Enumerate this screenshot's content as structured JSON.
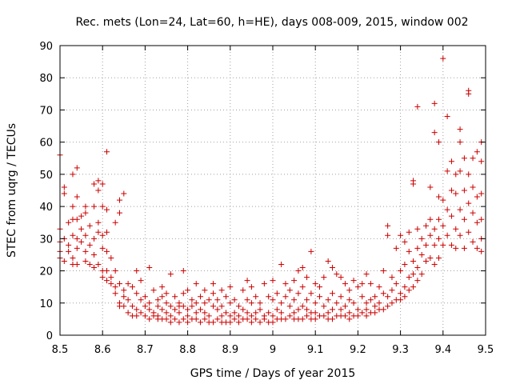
{
  "chart_data": {
    "type": "scatter",
    "title": "Rec. mets (Lon=24, Lat=60, h=HE), days 008-009, 2015, window 002",
    "xlabel": "GPS time / Days of year 2015",
    "ylabel": "STEC from uqrg / TECUs",
    "xlim": [
      8.5,
      9.5
    ],
    "ylim": [
      0,
      90
    ],
    "xticks": [
      8.5,
      8.6,
      8.7,
      8.8,
      8.9,
      9.0,
      9.1,
      9.2,
      9.3,
      9.4,
      9.5
    ],
    "xtick_labels": [
      "8.5",
      "8.6",
      "8.7",
      "8.8",
      "8.9",
      "9",
      "9.1",
      "9.2",
      "9.3",
      "9.4",
      "9.5"
    ],
    "yticks": [
      0,
      10,
      20,
      30,
      40,
      50,
      60,
      70,
      80,
      90
    ],
    "ytick_labels": [
      "0",
      "10",
      "20",
      "30",
      "40",
      "50",
      "60",
      "70",
      "80",
      "90"
    ],
    "grid": true,
    "marker": "+",
    "color": "#cc0000",
    "points": [
      [
        8.5,
        56
      ],
      [
        8.5,
        33
      ],
      [
        8.5,
        29
      ],
      [
        8.5,
        26
      ],
      [
        8.5,
        24
      ],
      [
        8.51,
        46
      ],
      [
        8.51,
        44
      ],
      [
        8.51,
        30
      ],
      [
        8.51,
        23
      ],
      [
        8.52,
        35
      ],
      [
        8.52,
        28
      ],
      [
        8.52,
        26
      ],
      [
        8.53,
        50
      ],
      [
        8.53,
        40
      ],
      [
        8.53,
        36
      ],
      [
        8.53,
        31
      ],
      [
        8.53,
        24
      ],
      [
        8.53,
        22
      ],
      [
        8.54,
        52
      ],
      [
        8.54,
        43
      ],
      [
        8.54,
        36
      ],
      [
        8.54,
        30
      ],
      [
        8.54,
        27
      ],
      [
        8.54,
        22
      ],
      [
        8.55,
        37
      ],
      [
        8.55,
        33
      ],
      [
        8.55,
        29
      ],
      [
        8.56,
        40
      ],
      [
        8.56,
        38
      ],
      [
        8.56,
        31
      ],
      [
        8.56,
        26
      ],
      [
        8.56,
        23
      ],
      [
        8.57,
        34
      ],
      [
        8.57,
        28
      ],
      [
        8.57,
        22
      ],
      [
        8.58,
        47
      ],
      [
        8.58,
        40
      ],
      [
        8.58,
        30
      ],
      [
        8.58,
        25
      ],
      [
        8.58,
        21
      ],
      [
        8.59,
        48
      ],
      [
        8.59,
        45
      ],
      [
        8.59,
        35
      ],
      [
        8.59,
        32
      ],
      [
        8.59,
        22
      ],
      [
        8.6,
        47
      ],
      [
        8.6,
        40
      ],
      [
        8.6,
        31
      ],
      [
        8.6,
        27
      ],
      [
        8.6,
        20
      ],
      [
        8.6,
        18
      ],
      [
        8.61,
        57
      ],
      [
        8.61,
        39
      ],
      [
        8.61,
        32
      ],
      [
        8.61,
        26
      ],
      [
        8.61,
        20
      ],
      [
        8.61,
        17
      ],
      [
        8.62,
        24
      ],
      [
        8.62,
        18
      ],
      [
        8.62,
        16
      ],
      [
        8.63,
        35
      ],
      [
        8.63,
        20
      ],
      [
        8.63,
        15
      ],
      [
        8.63,
        13
      ],
      [
        8.64,
        42
      ],
      [
        8.64,
        38
      ],
      [
        8.64,
        16
      ],
      [
        8.64,
        10
      ],
      [
        8.64,
        9
      ],
      [
        8.65,
        44
      ],
      [
        8.65,
        14
      ],
      [
        8.65,
        12
      ],
      [
        8.65,
        9
      ],
      [
        8.66,
        16
      ],
      [
        8.66,
        11
      ],
      [
        8.66,
        7
      ],
      [
        8.67,
        15
      ],
      [
        8.67,
        9
      ],
      [
        8.67,
        6
      ],
      [
        8.68,
        20
      ],
      [
        8.68,
        13
      ],
      [
        8.68,
        8
      ],
      [
        8.68,
        6
      ],
      [
        8.69,
        17
      ],
      [
        8.69,
        11
      ],
      [
        8.69,
        7
      ],
      [
        8.7,
        12
      ],
      [
        8.7,
        9
      ],
      [
        8.7,
        6
      ],
      [
        8.71,
        21
      ],
      [
        8.71,
        10
      ],
      [
        8.71,
        8
      ],
      [
        8.71,
        5
      ],
      [
        8.72,
        14
      ],
      [
        8.72,
        7
      ],
      [
        8.72,
        6
      ],
      [
        8.73,
        11
      ],
      [
        8.73,
        9
      ],
      [
        8.73,
        6
      ],
      [
        8.73,
        5
      ],
      [
        8.74,
        15
      ],
      [
        8.74,
        12
      ],
      [
        8.74,
        8
      ],
      [
        8.74,
        5
      ],
      [
        8.75,
        13
      ],
      [
        8.75,
        10
      ],
      [
        8.75,
        7
      ],
      [
        8.75,
        5
      ],
      [
        8.76,
        19
      ],
      [
        8.76,
        9
      ],
      [
        8.76,
        6
      ],
      [
        8.76,
        4
      ],
      [
        8.77,
        12
      ],
      [
        8.77,
        8
      ],
      [
        8.77,
        5
      ],
      [
        8.78,
        10
      ],
      [
        8.78,
        9
      ],
      [
        8.78,
        7
      ],
      [
        8.78,
        4
      ],
      [
        8.79,
        20
      ],
      [
        8.79,
        13
      ],
      [
        8.79,
        9
      ],
      [
        8.79,
        5
      ],
      [
        8.8,
        14
      ],
      [
        8.8,
        8
      ],
      [
        8.8,
        6
      ],
      [
        8.8,
        4
      ],
      [
        8.81,
        11
      ],
      [
        8.81,
        9
      ],
      [
        8.81,
        5
      ],
      [
        8.82,
        16
      ],
      [
        8.82,
        10
      ],
      [
        8.82,
        7
      ],
      [
        8.82,
        5
      ],
      [
        8.83,
        12
      ],
      [
        8.83,
        8
      ],
      [
        8.83,
        4
      ],
      [
        8.84,
        14
      ],
      [
        8.84,
        10
      ],
      [
        8.84,
        7
      ],
      [
        8.84,
        5
      ],
      [
        8.85,
        11
      ],
      [
        8.85,
        6
      ],
      [
        8.85,
        4
      ],
      [
        8.86,
        16
      ],
      [
        8.86,
        13
      ],
      [
        8.86,
        9
      ],
      [
        8.86,
        4
      ],
      [
        8.87,
        11
      ],
      [
        8.87,
        8
      ],
      [
        8.87,
        5
      ],
      [
        8.88,
        14
      ],
      [
        8.88,
        9
      ],
      [
        8.88,
        6
      ],
      [
        8.88,
        4
      ],
      [
        8.89,
        12
      ],
      [
        8.89,
        7
      ],
      [
        8.89,
        4
      ],
      [
        8.9,
        15
      ],
      [
        8.9,
        10
      ],
      [
        8.9,
        6
      ],
      [
        8.9,
        4
      ],
      [
        8.91,
        11
      ],
      [
        8.91,
        7
      ],
      [
        8.91,
        5
      ],
      [
        8.92,
        9
      ],
      [
        8.92,
        6
      ],
      [
        8.92,
        4
      ],
      [
        8.93,
        14
      ],
      [
        8.93,
        8
      ],
      [
        8.93,
        5
      ],
      [
        8.94,
        17
      ],
      [
        8.94,
        11
      ],
      [
        8.94,
        7
      ],
      [
        8.94,
        5
      ],
      [
        8.95,
        15
      ],
      [
        8.95,
        10
      ],
      [
        8.95,
        6
      ],
      [
        8.95,
        4
      ],
      [
        8.96,
        12
      ],
      [
        8.96,
        7
      ],
      [
        8.96,
        5
      ],
      [
        8.97,
        10
      ],
      [
        8.97,
        8
      ],
      [
        8.97,
        4
      ],
      [
        8.98,
        16
      ],
      [
        8.98,
        6
      ],
      [
        8.98,
        5
      ],
      [
        8.99,
        12
      ],
      [
        8.99,
        7
      ],
      [
        8.99,
        4
      ],
      [
        9.0,
        17
      ],
      [
        9.0,
        11
      ],
      [
        9.0,
        6
      ],
      [
        9.0,
        4
      ],
      [
        9.01,
        13
      ],
      [
        9.01,
        8
      ],
      [
        9.01,
        5
      ],
      [
        9.02,
        22
      ],
      [
        9.02,
        10
      ],
      [
        9.02,
        7
      ],
      [
        9.02,
        5
      ],
      [
        9.03,
        16
      ],
      [
        9.03,
        12
      ],
      [
        9.03,
        5
      ],
      [
        9.04,
        14
      ],
      [
        9.04,
        9
      ],
      [
        9.04,
        6
      ],
      [
        9.05,
        17
      ],
      [
        9.05,
        11
      ],
      [
        9.05,
        7
      ],
      [
        9.05,
        5
      ],
      [
        9.06,
        20
      ],
      [
        9.06,
        13
      ],
      [
        9.06,
        8
      ],
      [
        9.06,
        5
      ],
      [
        9.07,
        21
      ],
      [
        9.07,
        15
      ],
      [
        9.07,
        9
      ],
      [
        9.07,
        5
      ],
      [
        9.08,
        18
      ],
      [
        9.08,
        11
      ],
      [
        9.08,
        8
      ],
      [
        9.08,
        6
      ],
      [
        9.09,
        26
      ],
      [
        9.09,
        13
      ],
      [
        9.09,
        7
      ],
      [
        9.09,
        5
      ],
      [
        9.1,
        16
      ],
      [
        9.1,
        10
      ],
      [
        9.1,
        7
      ],
      [
        9.1,
        5
      ],
      [
        9.11,
        15
      ],
      [
        9.11,
        12
      ],
      [
        9.11,
        6
      ],
      [
        9.12,
        18
      ],
      [
        9.12,
        9
      ],
      [
        9.12,
        6
      ],
      [
        9.13,
        23
      ],
      [
        9.13,
        11
      ],
      [
        9.13,
        7
      ],
      [
        9.13,
        5
      ],
      [
        9.14,
        21
      ],
      [
        9.14,
        13
      ],
      [
        9.14,
        8
      ],
      [
        9.14,
        5
      ],
      [
        9.15,
        19
      ],
      [
        9.15,
        10
      ],
      [
        9.15,
        6
      ],
      [
        9.16,
        18
      ],
      [
        9.16,
        12
      ],
      [
        9.16,
        8
      ],
      [
        9.16,
        6
      ],
      [
        9.17,
        16
      ],
      [
        9.17,
        9
      ],
      [
        9.17,
        6
      ],
      [
        9.18,
        14
      ],
      [
        9.18,
        11
      ],
      [
        9.18,
        7
      ],
      [
        9.18,
        5
      ],
      [
        9.19,
        17
      ],
      [
        9.19,
        10
      ],
      [
        9.19,
        6
      ],
      [
        9.2,
        15
      ],
      [
        9.2,
        8
      ],
      [
        9.2,
        6
      ],
      [
        9.21,
        16
      ],
      [
        9.21,
        12
      ],
      [
        9.21,
        7
      ],
      [
        9.22,
        19
      ],
      [
        9.22,
        10
      ],
      [
        9.22,
        8
      ],
      [
        9.22,
        6
      ],
      [
        9.23,
        16
      ],
      [
        9.23,
        11
      ],
      [
        9.23,
        7
      ],
      [
        9.24,
        12
      ],
      [
        9.24,
        9
      ],
      [
        9.24,
        7
      ],
      [
        9.25,
        15
      ],
      [
        9.25,
        10
      ],
      [
        9.25,
        8
      ],
      [
        9.26,
        20
      ],
      [
        9.26,
        13
      ],
      [
        9.26,
        8
      ],
      [
        9.27,
        34
      ],
      [
        9.27,
        31
      ],
      [
        9.27,
        12
      ],
      [
        9.27,
        9
      ],
      [
        9.28,
        18
      ],
      [
        9.28,
        14
      ],
      [
        9.28,
        10
      ],
      [
        9.29,
        27
      ],
      [
        9.29,
        16
      ],
      [
        9.29,
        11
      ],
      [
        9.3,
        31
      ],
      [
        9.3,
        20
      ],
      [
        9.3,
        13
      ],
      [
        9.3,
        11
      ],
      [
        9.31,
        29
      ],
      [
        9.31,
        22
      ],
      [
        9.31,
        15
      ],
      [
        9.31,
        12
      ],
      [
        9.32,
        32
      ],
      [
        9.32,
        26
      ],
      [
        9.32,
        18
      ],
      [
        9.32,
        14
      ],
      [
        9.33,
        48
      ],
      [
        9.33,
        47
      ],
      [
        9.33,
        23
      ],
      [
        9.33,
        19
      ],
      [
        9.33,
        15
      ],
      [
        9.34,
        71
      ],
      [
        9.34,
        33
      ],
      [
        9.34,
        27
      ],
      [
        9.34,
        21
      ],
      [
        9.34,
        17
      ],
      [
        9.35,
        30
      ],
      [
        9.35,
        25
      ],
      [
        9.35,
        19
      ],
      [
        9.36,
        34
      ],
      [
        9.36,
        28
      ],
      [
        9.36,
        23
      ],
      [
        9.37,
        46
      ],
      [
        9.37,
        36
      ],
      [
        9.37,
        31
      ],
      [
        9.37,
        24
      ],
      [
        9.38,
        72
      ],
      [
        9.38,
        63
      ],
      [
        9.38,
        33
      ],
      [
        9.38,
        28
      ],
      [
        9.38,
        22
      ],
      [
        9.39,
        60
      ],
      [
        9.39,
        43
      ],
      [
        9.39,
        36
      ],
      [
        9.39,
        30
      ],
      [
        9.39,
        24
      ],
      [
        9.4,
        86
      ],
      [
        9.4,
        42
      ],
      [
        9.4,
        34
      ],
      [
        9.4,
        28
      ],
      [
        9.41,
        68
      ],
      [
        9.41,
        51
      ],
      [
        9.41,
        39
      ],
      [
        9.41,
        31
      ],
      [
        9.42,
        54
      ],
      [
        9.42,
        45
      ],
      [
        9.42,
        37
      ],
      [
        9.42,
        28
      ],
      [
        9.43,
        50
      ],
      [
        9.43,
        44
      ],
      [
        9.43,
        33
      ],
      [
        9.43,
        27
      ],
      [
        9.44,
        64
      ],
      [
        9.44,
        60
      ],
      [
        9.44,
        51
      ],
      [
        9.44,
        39
      ],
      [
        9.44,
        31
      ],
      [
        9.45,
        55
      ],
      [
        9.45,
        45
      ],
      [
        9.45,
        36
      ],
      [
        9.45,
        27
      ],
      [
        9.46,
        76
      ],
      [
        9.46,
        75
      ],
      [
        9.46,
        50
      ],
      [
        9.46,
        41
      ],
      [
        9.46,
        32
      ],
      [
        9.47,
        55
      ],
      [
        9.47,
        46
      ],
      [
        9.47,
        38
      ],
      [
        9.47,
        29
      ],
      [
        9.48,
        57
      ],
      [
        9.48,
        43
      ],
      [
        9.48,
        35
      ],
      [
        9.48,
        27
      ],
      [
        9.49,
        60
      ],
      [
        9.49,
        54
      ],
      [
        9.49,
        44
      ],
      [
        9.49,
        36
      ],
      [
        9.49,
        30
      ],
      [
        9.49,
        26
      ]
    ]
  }
}
